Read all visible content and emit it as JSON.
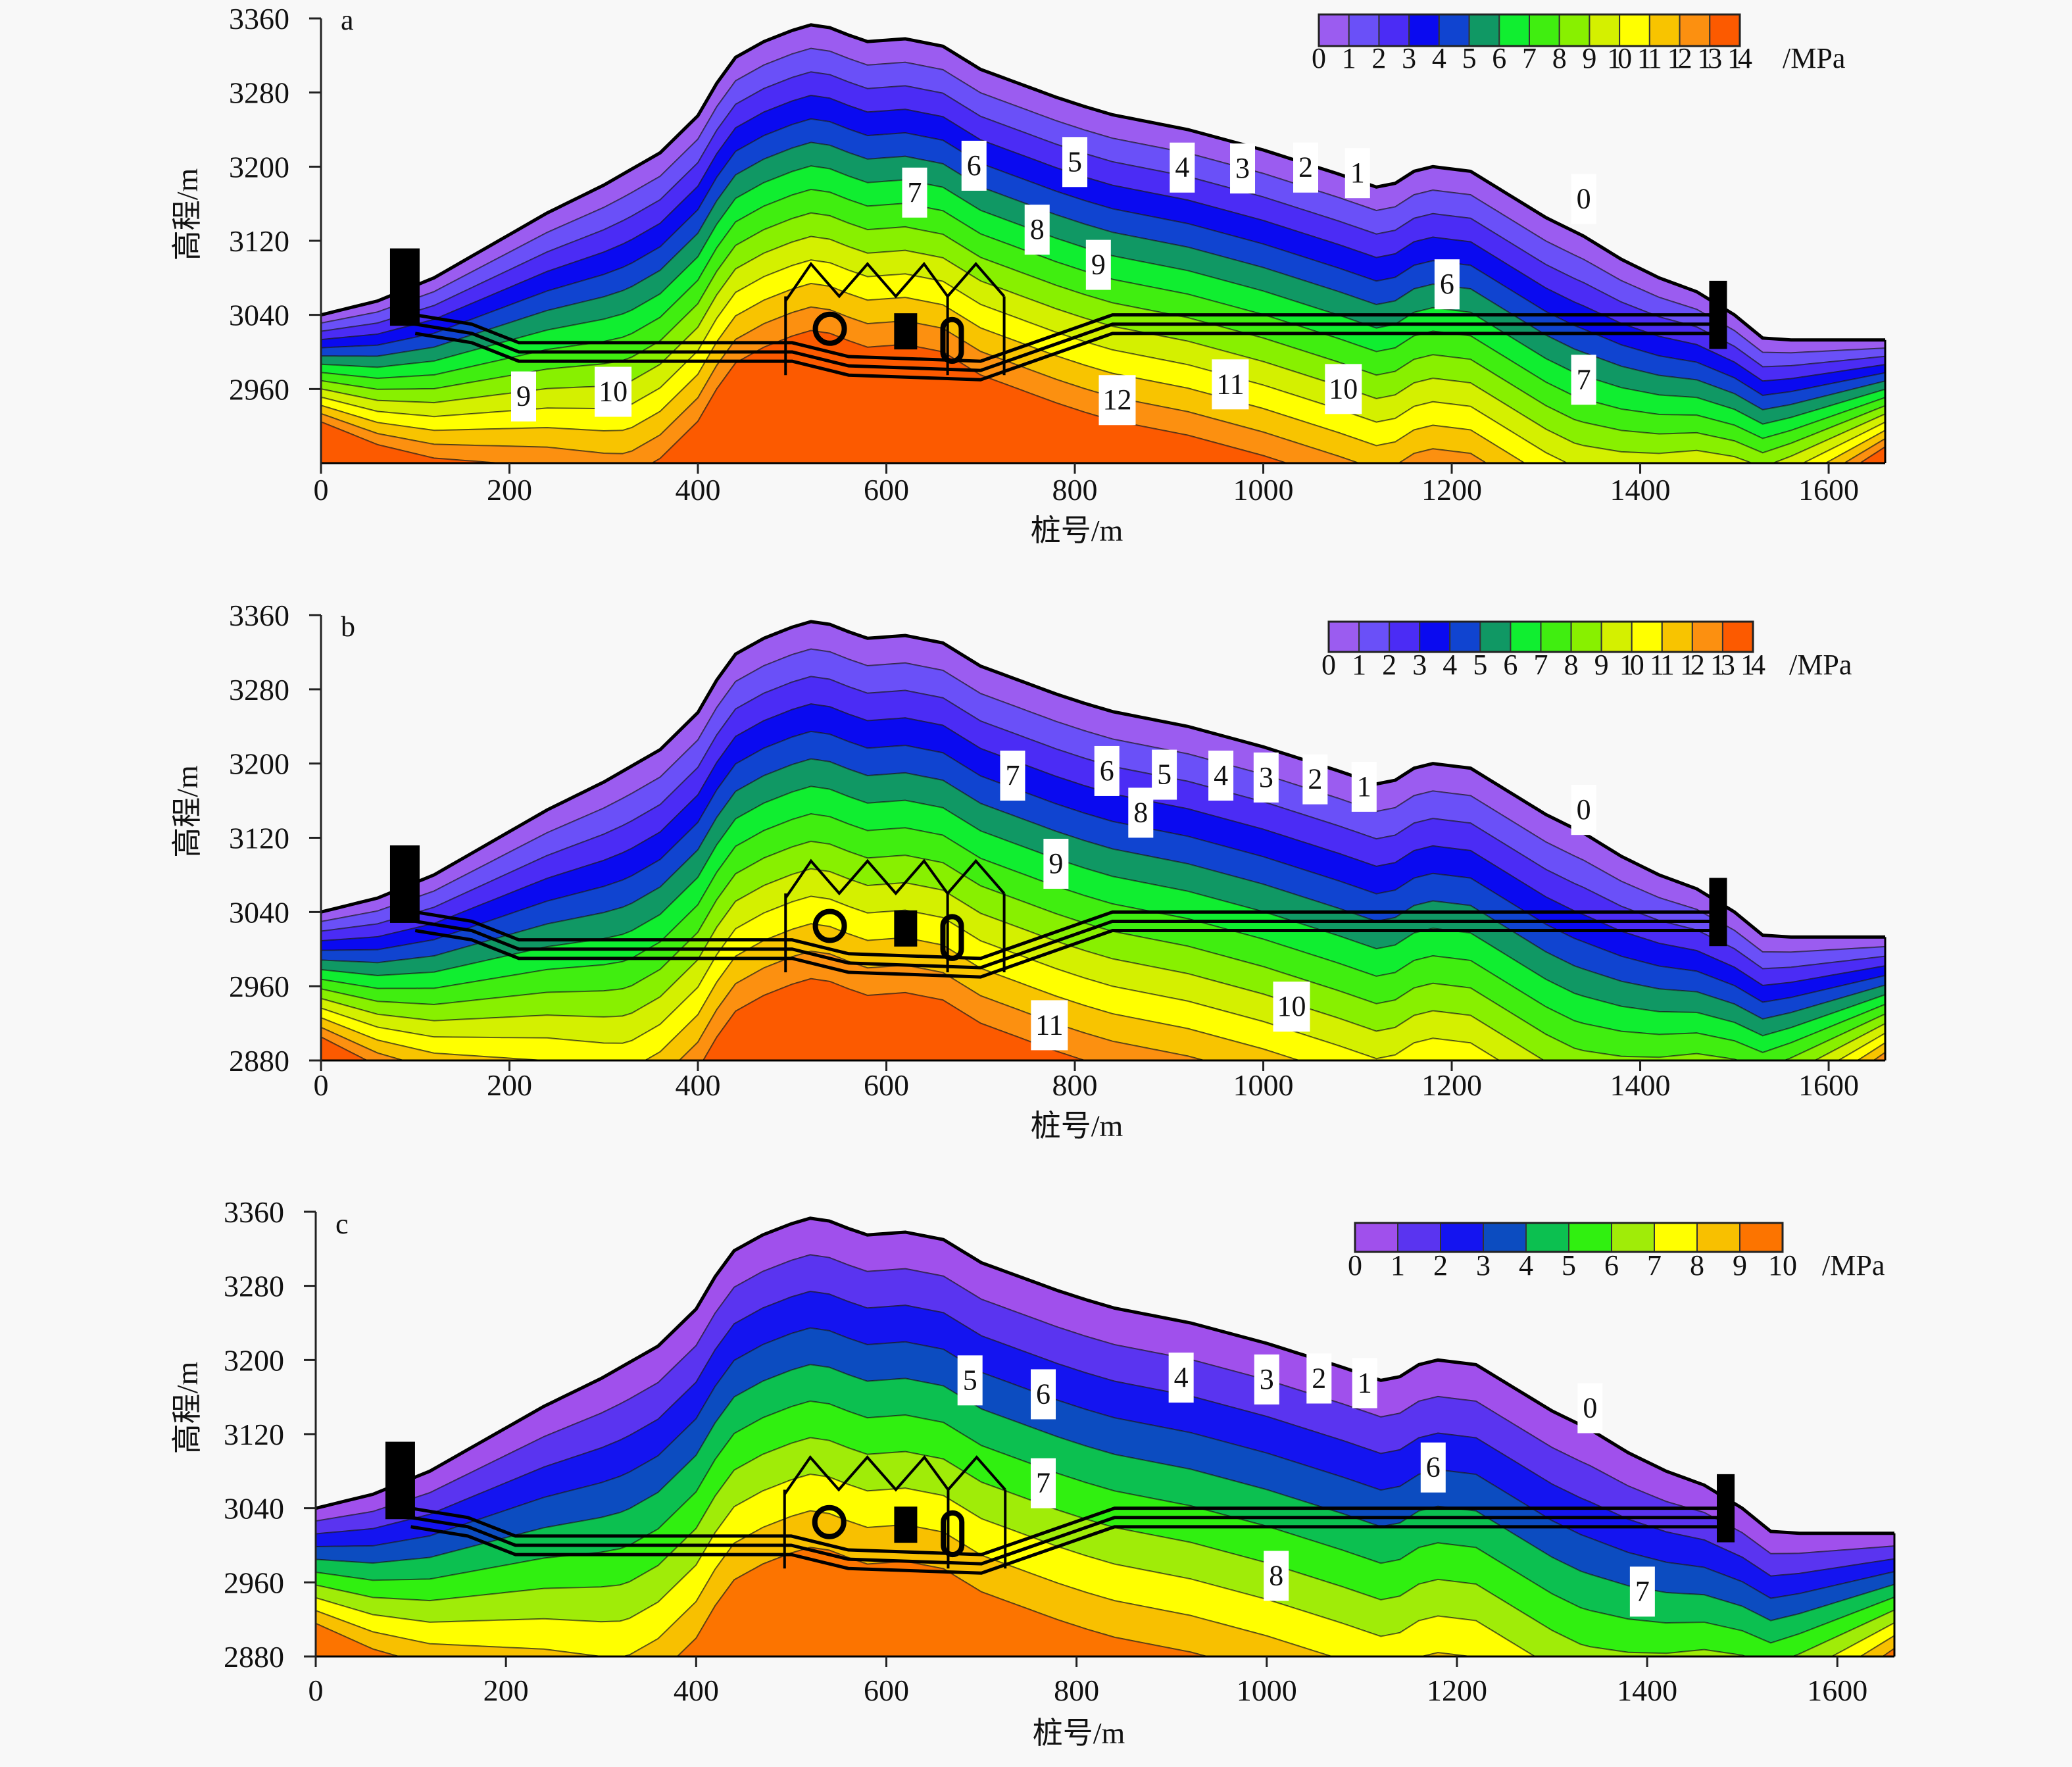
{
  "chart_data": [
    {
      "type": "heatmap",
      "panel_label": "a",
      "title": "",
      "xlabel": "桩号/m",
      "ylabel": "高程/m",
      "xlim": [
        0,
        1660
      ],
      "ylim": [
        2880,
        3360
      ],
      "xticks": [
        0,
        200,
        400,
        600,
        800,
        1000,
        1200,
        1400,
        1600
      ],
      "yticks": [
        2960,
        3040,
        3120,
        3200,
        3280,
        3360
      ],
      "colorbar": {
        "unit": "/MPa",
        "levels": [
          0,
          1,
          2,
          3,
          4,
          5,
          6,
          7,
          8,
          9,
          10,
          11,
          12,
          13,
          14
        ],
        "level_labels": [
          "0",
          "1",
          "2",
          "3",
          "4",
          "5",
          "6",
          "7",
          "8",
          "9",
          "10",
          "11",
          "12",
          "13",
          "14"
        ],
        "colors": [
          "#9b5cf0",
          "#6a50f8",
          "#4b2cf5",
          "#0a0af0",
          "#1044d0",
          "#109864",
          "#10ee30",
          "#40ee10",
          "#88f000",
          "#d4f000",
          "#ffff00",
          "#f8c400",
          "#fc9010",
          "#fc5a00"
        ]
      },
      "max_value_mid": 14,
      "contour_labels": [
        {
          "text": "0",
          "x": 1340,
          "y": 3165
        },
        {
          "text": "1",
          "x": 1100,
          "y": 3193
        },
        {
          "text": "2",
          "x": 1045,
          "y": 3199
        },
        {
          "text": "3",
          "x": 978,
          "y": 3198
        },
        {
          "text": "4",
          "x": 914,
          "y": 3199
        },
        {
          "text": "5",
          "x": 800,
          "y": 3205
        },
        {
          "text": "6",
          "x": 693,
          "y": 3201
        },
        {
          "text": "7",
          "x": 630,
          "y": 3172
        },
        {
          "text": "8",
          "x": 760,
          "y": 3132
        },
        {
          "text": "9",
          "x": 825,
          "y": 3094
        },
        {
          "text": "6",
          "x": 1195,
          "y": 3073
        },
        {
          "text": "7",
          "x": 1340,
          "y": 2970
        },
        {
          "text": "9",
          "x": 215,
          "y": 2952
        },
        {
          "text": "10",
          "x": 310,
          "y": 2957
        },
        {
          "text": "12",
          "x": 845,
          "y": 2948
        },
        {
          "text": "11",
          "x": 965,
          "y": 2965
        },
        {
          "text": "10",
          "x": 1085,
          "y": 2960
        }
      ]
    },
    {
      "type": "heatmap",
      "panel_label": "b",
      "title": "",
      "xlabel": "桩号/m",
      "ylabel": "高程/m",
      "xlim": [
        0,
        1660
      ],
      "ylim": [
        2880,
        3360
      ],
      "xticks": [
        0,
        200,
        400,
        600,
        800,
        1000,
        1200,
        1400,
        1600
      ],
      "yticks": [
        2880,
        2960,
        3040,
        3120,
        3200,
        3280,
        3360
      ],
      "colorbar": {
        "unit": "/MPa",
        "levels": [
          0,
          1,
          2,
          3,
          4,
          5,
          6,
          7,
          8,
          9,
          10,
          11,
          12,
          13,
          14
        ],
        "level_labels": [
          "0",
          "1",
          "2",
          "3",
          "4",
          "5",
          "6",
          "7",
          "8",
          "9",
          "10",
          "11",
          "12",
          "13",
          "14"
        ],
        "colors": [
          "#9b5cf0",
          "#6a50f8",
          "#4b2cf5",
          "#0a0af0",
          "#1044d0",
          "#109864",
          "#10ee30",
          "#40ee10",
          "#88f000",
          "#d4f000",
          "#ffff00",
          "#f8c400",
          "#fc9010",
          "#fc5a00"
        ]
      },
      "max_value_mid": 12,
      "contour_labels": [
        {
          "text": "0",
          "x": 1340,
          "y": 3150
        },
        {
          "text": "1",
          "x": 1107,
          "y": 3175
        },
        {
          "text": "2",
          "x": 1055,
          "y": 3183
        },
        {
          "text": "3",
          "x": 1003,
          "y": 3185
        },
        {
          "text": "4",
          "x": 955,
          "y": 3187
        },
        {
          "text": "5",
          "x": 895,
          "y": 3188
        },
        {
          "text": "6",
          "x": 834,
          "y": 3192
        },
        {
          "text": "7",
          "x": 734,
          "y": 3187
        },
        {
          "text": "8",
          "x": 870,
          "y": 3147
        },
        {
          "text": "9",
          "x": 780,
          "y": 3092
        },
        {
          "text": "10",
          "x": 1030,
          "y": 2938
        },
        {
          "text": "11",
          "x": 773,
          "y": 2918
        }
      ]
    },
    {
      "type": "heatmap",
      "panel_label": "c",
      "title": "",
      "xlabel": "桩号/m",
      "ylabel": "高程/m",
      "xlim": [
        0,
        1660
      ],
      "ylim": [
        2880,
        3360
      ],
      "xticks": [
        0,
        200,
        400,
        600,
        800,
        1000,
        1200,
        1400,
        1600
      ],
      "yticks": [
        2880,
        2960,
        3040,
        3120,
        3200,
        3280,
        3360
      ],
      "colorbar": {
        "unit": "/MPa",
        "levels": [
          0,
          1,
          2,
          3,
          4,
          5,
          6,
          7,
          8,
          9,
          10
        ],
        "level_labels": [
          "0",
          "1",
          "2",
          "3",
          "4",
          "5",
          "6",
          "7",
          "8",
          "9",
          "10"
        ],
        "colors": [
          "#a050ec",
          "#5a34f0",
          "#1414f0",
          "#0c4cc0",
          "#0cc050",
          "#30f010",
          "#a0ec08",
          "#ffff00",
          "#f8c000",
          "#fc7400"
        ]
      },
      "max_value_mid": 9,
      "contour_labels": [
        {
          "text": "0",
          "x": 1340,
          "y": 3148
        },
        {
          "text": "1",
          "x": 1103,
          "y": 3175
        },
        {
          "text": "2",
          "x": 1055,
          "y": 3180
        },
        {
          "text": "3",
          "x": 1000,
          "y": 3179
        },
        {
          "text": "4",
          "x": 910,
          "y": 3181
        },
        {
          "text": "5",
          "x": 688,
          "y": 3178
        },
        {
          "text": "6",
          "x": 765,
          "y": 3163
        },
        {
          "text": "7",
          "x": 765,
          "y": 3067
        },
        {
          "text": "6",
          "x": 1175,
          "y": 3084
        },
        {
          "text": "8",
          "x": 1010,
          "y": 2967
        },
        {
          "text": "7",
          "x": 1395,
          "y": 2950
        }
      ]
    }
  ],
  "terrain": {
    "x": [
      0,
      60,
      120,
      180,
      240,
      300,
      360,
      400,
      420,
      440,
      470,
      500,
      520,
      540,
      560,
      580,
      620,
      660,
      700,
      740,
      780,
      810,
      840,
      880,
      920,
      960,
      1000,
      1040,
      1080,
      1120,
      1140,
      1160,
      1180,
      1220,
      1260,
      1300,
      1340,
      1380,
      1420,
      1460,
      1500,
      1530,
      1560,
      1600,
      1660
    ],
    "y": [
      3040,
      3055,
      3080,
      3115,
      3150,
      3180,
      3215,
      3255,
      3290,
      3318,
      3335,
      3347,
      3353,
      3350,
      3342,
      3335,
      3338,
      3330,
      3305,
      3290,
      3275,
      3265,
      3256,
      3248,
      3240,
      3229,
      3218,
      3205,
      3192,
      3178,
      3182,
      3195,
      3200,
      3195,
      3170,
      3145,
      3125,
      3100,
      3080,
      3065,
      3040,
      3015,
      3013,
      3013,
      3013
    ]
  }
}
